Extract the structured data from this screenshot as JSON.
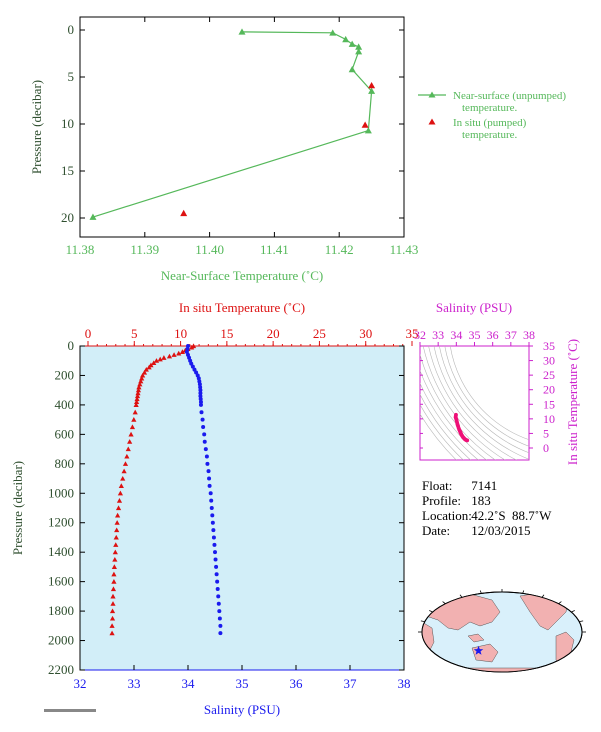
{
  "colors": {
    "green": "#55b85a",
    "red": "#dd1111",
    "blue": "#1a1aee",
    "magenta": "#cc22cc",
    "pink": "#ee1177",
    "axis_dark": "#2f4f2f",
    "plot_bg": "#d2eef8",
    "land": "#f2b1b1",
    "ocean": "#d9f0fb"
  },
  "chart_data": [
    {
      "id": "near_surface",
      "type": "line",
      "xlabel": "Near-Surface Temperature (˚C)",
      "ylabel": "Pressure (decibar)",
      "xlim": [
        11.38,
        11.43
      ],
      "ylim": [
        0,
        22
      ],
      "y_reversed": true,
      "x_ticks": [
        "11.38",
        "11.39",
        "11.40",
        "11.41",
        "11.42",
        "11.43"
      ],
      "y_ticks": [
        "0",
        "5",
        "10",
        "15",
        "20"
      ],
      "series": [
        {
          "name": "Near-surface (unpumped) temperature.",
          "marker": "triangle-line",
          "points": [
            [
              11.405,
              0.2
            ],
            [
              11.419,
              0.3
            ],
            [
              11.421,
              1.0
            ],
            [
              11.422,
              1.5
            ],
            [
              11.423,
              1.8
            ],
            [
              11.423,
              2.3
            ],
            [
              11.422,
              4.2
            ],
            [
              11.425,
              6.5
            ],
            [
              11.4245,
              10.7
            ],
            [
              11.382,
              19.9
            ]
          ]
        },
        {
          "name": "In situ (pumped) temperature.",
          "marker": "triangle",
          "points": [
            [
              11.425,
              5.9
            ],
            [
              11.424,
              10.1
            ],
            [
              11.396,
              19.5
            ]
          ]
        }
      ],
      "legend": [
        {
          "label_line1": "Near-surface (unpumped)",
          "label_line2": "temperature."
        },
        {
          "label_line1": "In situ (pumped)",
          "label_line2": "temperature."
        }
      ],
      "legend_position": "right"
    },
    {
      "id": "profile",
      "type": "scatter",
      "top_xlabel": "In situ Temperature (˚C)",
      "bottom_xlabel": "Salinity (PSU)",
      "ylabel": "Pressure (decibar)",
      "temperature_lim": [
        0,
        35
      ],
      "salinity_lim": [
        32,
        38
      ],
      "ylim": [
        0,
        2200
      ],
      "y_reversed": true,
      "top_ticks": [
        "0",
        "5",
        "10",
        "15",
        "20",
        "25",
        "30",
        "35"
      ],
      "bottom_ticks": [
        "32",
        "33",
        "34",
        "35",
        "36",
        "37",
        "38"
      ],
      "y_ticks": [
        "0",
        "200",
        "400",
        "600",
        "800",
        "1000",
        "1200",
        "1400",
        "1600",
        "1800",
        "2000",
        "2200"
      ],
      "temperature": [
        [
          11.4,
          0
        ],
        [
          11.2,
          10
        ],
        [
          10.8,
          20
        ],
        [
          10.5,
          30
        ],
        [
          10.2,
          40
        ],
        [
          9.8,
          50
        ],
        [
          9.3,
          60
        ],
        [
          8.8,
          70
        ],
        [
          8.2,
          80
        ],
        [
          7.8,
          90
        ],
        [
          7.4,
          100
        ],
        [
          7.1,
          115
        ],
        [
          6.8,
          130
        ],
        [
          6.6,
          145
        ],
        [
          6.3,
          160
        ],
        [
          6.1,
          180
        ],
        [
          5.9,
          200
        ],
        [
          5.8,
          220
        ],
        [
          5.7,
          240
        ],
        [
          5.6,
          260
        ],
        [
          5.5,
          280
        ],
        [
          5.45,
          300
        ],
        [
          5.4,
          320
        ],
        [
          5.35,
          340
        ],
        [
          5.3,
          360
        ],
        [
          5.25,
          380
        ],
        [
          5.2,
          400
        ],
        [
          5.1,
          450
        ],
        [
          4.95,
          500
        ],
        [
          4.8,
          550
        ],
        [
          4.65,
          600
        ],
        [
          4.5,
          650
        ],
        [
          4.35,
          700
        ],
        [
          4.2,
          750
        ],
        [
          4.05,
          800
        ],
        [
          3.9,
          850
        ],
        [
          3.75,
          900
        ],
        [
          3.6,
          950
        ],
        [
          3.5,
          1000
        ],
        [
          3.4,
          1050
        ],
        [
          3.3,
          1100
        ],
        [
          3.2,
          1150
        ],
        [
          3.15,
          1200
        ],
        [
          3.1,
          1250
        ],
        [
          3.05,
          1300
        ],
        [
          3.0,
          1350
        ],
        [
          2.95,
          1400
        ],
        [
          2.9,
          1450
        ],
        [
          2.85,
          1500
        ],
        [
          2.8,
          1550
        ],
        [
          2.8,
          1600
        ],
        [
          2.75,
          1650
        ],
        [
          2.7,
          1700
        ],
        [
          2.7,
          1750
        ],
        [
          2.65,
          1800
        ],
        [
          2.65,
          1850
        ],
        [
          2.6,
          1900
        ],
        [
          2.6,
          1950
        ]
      ],
      "salinity": [
        [
          34.0,
          0
        ],
        [
          33.99,
          20
        ],
        [
          33.98,
          40
        ],
        [
          34.0,
          60
        ],
        [
          34.02,
          80
        ],
        [
          34.04,
          100
        ],
        [
          34.06,
          120
        ],
        [
          34.09,
          140
        ],
        [
          34.12,
          160
        ],
        [
          34.15,
          180
        ],
        [
          34.18,
          200
        ],
        [
          34.2,
          220
        ],
        [
          34.21,
          240
        ],
        [
          34.22,
          260
        ],
        [
          34.225,
          280
        ],
        [
          34.23,
          300
        ],
        [
          34.23,
          320
        ],
        [
          34.23,
          340
        ],
        [
          34.235,
          360
        ],
        [
          34.24,
          380
        ],
        [
          34.24,
          400
        ],
        [
          34.25,
          450
        ],
        [
          34.27,
          500
        ],
        [
          34.28,
          550
        ],
        [
          34.3,
          600
        ],
        [
          34.31,
          650
        ],
        [
          34.33,
          700
        ],
        [
          34.35,
          750
        ],
        [
          34.36,
          800
        ],
        [
          34.38,
          850
        ],
        [
          34.39,
          900
        ],
        [
          34.4,
          950
        ],
        [
          34.42,
          1000
        ],
        [
          34.43,
          1050
        ],
        [
          34.44,
          1100
        ],
        [
          34.45,
          1150
        ],
        [
          34.46,
          1200
        ],
        [
          34.47,
          1250
        ],
        [
          34.48,
          1300
        ],
        [
          34.49,
          1350
        ],
        [
          34.5,
          1400
        ],
        [
          34.51,
          1450
        ],
        [
          34.52,
          1500
        ],
        [
          34.53,
          1550
        ],
        [
          34.54,
          1600
        ],
        [
          34.55,
          1650
        ],
        [
          34.56,
          1700
        ],
        [
          34.57,
          1750
        ],
        [
          34.58,
          1800
        ],
        [
          34.59,
          1850
        ],
        [
          34.6,
          1900
        ],
        [
          34.6,
          1950
        ]
      ]
    },
    {
      "id": "ts_diagram",
      "type": "scatter",
      "xlabel": "Salinity (PSU)",
      "ylabel": "In situ Temperature (˚C)",
      "xlim": [
        32,
        38
      ],
      "ylim": [
        -1,
        35
      ],
      "x_ticks": [
        "32",
        "33",
        "34",
        "35",
        "36",
        "37",
        "38"
      ],
      "y_ticks": [
        "0",
        "5",
        "10",
        "15",
        "20",
        "25",
        "30",
        "35"
      ],
      "points": [
        [
          33.98,
          11.4
        ],
        [
          33.97,
          11.0
        ],
        [
          33.96,
          10.6
        ],
        [
          33.98,
          10.2
        ],
        [
          34.0,
          9.8
        ],
        [
          34.02,
          9.3
        ],
        [
          34.04,
          8.8
        ],
        [
          34.06,
          8.2
        ],
        [
          34.08,
          7.8
        ],
        [
          34.1,
          7.4
        ],
        [
          34.13,
          6.8
        ],
        [
          34.16,
          6.3
        ],
        [
          34.19,
          5.9
        ],
        [
          34.21,
          5.6
        ],
        [
          34.23,
          5.4
        ],
        [
          34.24,
          5.2
        ],
        [
          34.26,
          4.9
        ],
        [
          34.28,
          4.6
        ],
        [
          34.31,
          4.3
        ],
        [
          34.34,
          4.0
        ],
        [
          34.37,
          3.7
        ],
        [
          34.4,
          3.5
        ],
        [
          34.43,
          3.3
        ],
        [
          34.46,
          3.1
        ],
        [
          34.49,
          2.95
        ],
        [
          34.52,
          2.8
        ],
        [
          34.55,
          2.7
        ],
        [
          34.58,
          2.65
        ],
        [
          34.6,
          2.6
        ]
      ]
    }
  ],
  "info": {
    "float_label": "Float:",
    "float_value": "7141",
    "profile_label": "Profile:",
    "profile_value": "183",
    "location_label": "Location:",
    "location_value": "42.2˚S  88.7˚W",
    "date_label": "Date:",
    "date_value": "12/03/2015"
  },
  "map": {
    "marker": "float-position-star",
    "marker_lat": -42.2,
    "marker_lon": -88.7
  }
}
